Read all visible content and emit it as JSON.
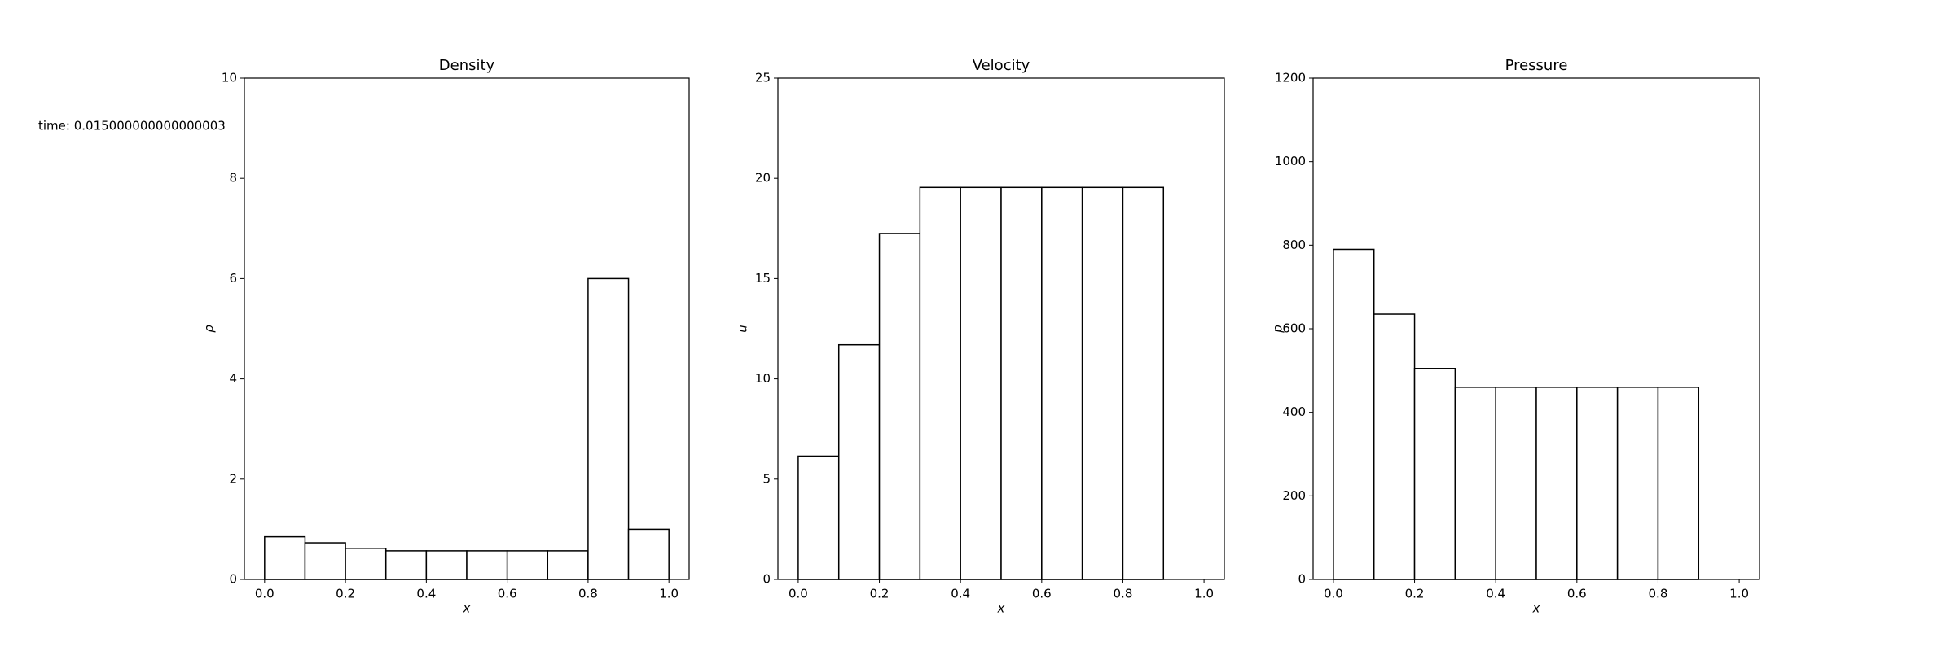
{
  "chart_data": [
    {
      "type": "histogram",
      "title": "Density",
      "annotation": "time: 0.015000000000000003",
      "xlabel": "x",
      "ylabel": "ρ",
      "bins": [
        0.0,
        0.1,
        0.2,
        0.3,
        0.4,
        0.5,
        0.6,
        0.7,
        0.8,
        0.9,
        1.0
      ],
      "values": [
        0.85,
        0.73,
        0.62,
        0.57,
        0.57,
        0.57,
        0.57,
        0.57,
        6.0,
        1.0
      ],
      "color": "#ffffff",
      "edgecolor": "#000000",
      "xlim": [
        -0.05,
        1.05
      ],
      "xticks": [
        {
          "value": 0,
          "label": "0.0"
        },
        0.2,
        0.4,
        0.6,
        0.8,
        {
          "value": 1,
          "label": "1.0"
        }
      ],
      "ylim": [
        0,
        10
      ],
      "yticks": [
        0,
        2,
        4,
        6,
        8,
        10
      ]
    },
    {
      "type": "histogram",
      "title": "Velocity",
      "xlabel": "x",
      "ylabel": "u",
      "bins": [
        0.0,
        0.1,
        0.2,
        0.3,
        0.4,
        0.5,
        0.6,
        0.7,
        0.8,
        0.9
      ],
      "values": [
        6.15,
        11.7,
        17.25,
        19.55,
        19.55,
        19.55,
        19.55,
        19.55,
        19.55
      ],
      "color": "#ffffff",
      "edgecolor": "#000000",
      "xlim": [
        -0.05,
        1.05
      ],
      "xticks": [
        {
          "value": 0,
          "label": "0.0"
        },
        0.2,
        0.4,
        0.6,
        0.8,
        {
          "value": 1,
          "label": "1.0"
        }
      ],
      "ylim": [
        0,
        25
      ],
      "yticks": [
        0,
        5,
        10,
        15,
        20,
        25
      ]
    },
    {
      "type": "histogram",
      "title": "Pressure",
      "xlabel": "x",
      "ylabel": "p",
      "bins": [
        0.0,
        0.1,
        0.2,
        0.3,
        0.4,
        0.5,
        0.6,
        0.7,
        0.8,
        0.9
      ],
      "values": [
        790,
        635,
        505,
        460,
        460,
        460,
        460,
        460,
        460
      ],
      "color": "#ffffff",
      "edgecolor": "#000000",
      "xlim": [
        -0.05,
        1.05
      ],
      "xticks": [
        {
          "value": 0,
          "label": "0.0"
        },
        0.2,
        0.4,
        0.6,
        0.8,
        {
          "value": 1,
          "label": "1.0"
        }
      ],
      "ylim": [
        0,
        1200
      ],
      "yticks": [
        0,
        200,
        400,
        600,
        800,
        1000,
        1200
      ]
    }
  ]
}
